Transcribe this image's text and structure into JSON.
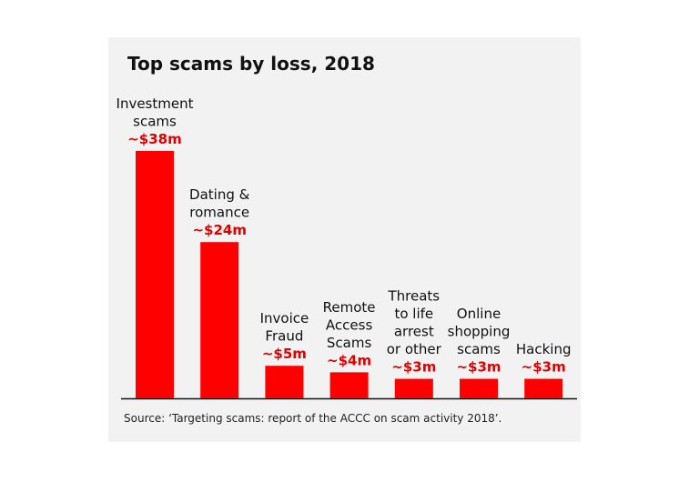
{
  "colors": {
    "bar": "#ff0000",
    "value_text": "#e00000",
    "panel": "#f2f2f2",
    "axis": "#111111"
  },
  "chart_data": {
    "type": "bar",
    "title": "Top scams by loss, 2018",
    "source": "Source: ‘Targeting scams: report of the ACCC on scam activity 2018’.",
    "categories": [
      [
        "Investment",
        "scams"
      ],
      [
        "Dating &",
        "romance"
      ],
      [
        "Invoice",
        "Fraud"
      ],
      [
        "Remote",
        "Access",
        "Scams"
      ],
      [
        "Threats",
        "to life",
        "arrest",
        "or other"
      ],
      [
        "Online",
        "shopping",
        "scams"
      ],
      [
        "Hacking"
      ]
    ],
    "values": [
      38,
      24,
      5,
      4,
      3,
      3,
      3
    ],
    "value_labels": [
      "~$38m",
      "~$24m",
      "~$5m",
      "~$4m",
      "~$3m",
      "~$3m",
      "~$3m"
    ],
    "unit": "$ million",
    "grid": false,
    "legend": "none"
  }
}
